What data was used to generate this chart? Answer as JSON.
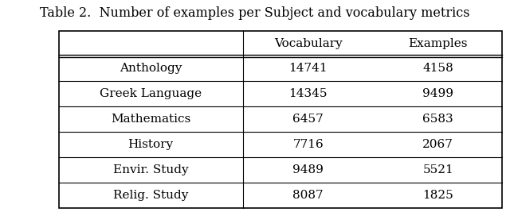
{
  "title": "Table 2.  Number of examples per Subject and vocabulary metrics",
  "columns": [
    "",
    "Vocabulary",
    "Examples"
  ],
  "rows": [
    [
      "Anthology",
      "14741",
      "4158"
    ],
    [
      "Greek Language",
      "14345",
      "9499"
    ],
    [
      "Mathematics",
      "6457",
      "6583"
    ],
    [
      "History",
      "7716",
      "2067"
    ],
    [
      "Envir. Study",
      "9489",
      "5521"
    ],
    [
      "Relig. Study",
      "8087",
      "1825"
    ]
  ],
  "background_color": "#ffffff",
  "text_color": "#000000",
  "font_size": 11,
  "title_font_size": 11.5
}
